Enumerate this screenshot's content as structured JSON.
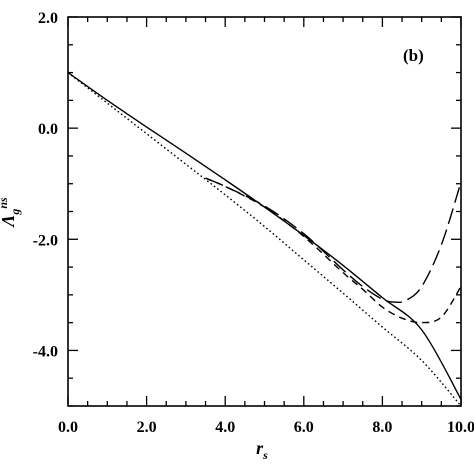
{
  "chart_data": {
    "type": "line",
    "title": "",
    "annotation": "(b)",
    "xlabel": "r",
    "xlabel_sub": "s",
    "ylabel": "Λ",
    "ylabel_sub": "g",
    "ylabel_sup": "ns",
    "xlim": [
      0,
      10
    ],
    "ylim": [
      -5,
      2
    ],
    "x_ticks": [
      0,
      2,
      4,
      6,
      8,
      10
    ],
    "x_tick_labels": [
      "0.0",
      "2.0",
      "4.0",
      "6.0",
      "8.0",
      "10.0"
    ],
    "y_ticks": [
      2,
      0,
      -2,
      -4
    ],
    "y_tick_labels": [
      "2.0",
      "0.0",
      "-2.0",
      "-4.0"
    ],
    "grid": false,
    "series": [
      {
        "style": "solid",
        "x": [
          0,
          1,
          2,
          3,
          4,
          5,
          6,
          7,
          8,
          9,
          10
        ],
        "y": [
          1.0,
          0.5,
          0.02,
          -0.45,
          -0.93,
          -1.42,
          -1.93,
          -2.47,
          -3.05,
          -3.63,
          -4.88
        ]
      },
      {
        "style": "dotted",
        "x": [
          0,
          1,
          2,
          3,
          4,
          5,
          6,
          7,
          8,
          9,
          10
        ],
        "y": [
          1.0,
          0.45,
          -0.1,
          -0.65,
          -1.2,
          -1.77,
          -2.37,
          -2.97,
          -3.58,
          -4.18,
          -5.0
        ]
      },
      {
        "style": "long-dash",
        "x": [
          3.5,
          4.0,
          5.0,
          6.0,
          7.0,
          7.5,
          8.0,
          8.3,
          8.6,
          9.0,
          9.5,
          10.0
        ],
        "y": [
          -0.9,
          -1.05,
          -1.4,
          -1.9,
          -2.55,
          -2.85,
          -3.08,
          -3.13,
          -3.1,
          -2.85,
          -2.1,
          -0.97
        ]
      },
      {
        "style": "short-dash",
        "x": [
          3.5,
          4.0,
          5.0,
          6.0,
          7.0,
          7.5,
          8.0,
          8.5,
          9.0,
          9.5,
          10.0
        ],
        "y": [
          -0.9,
          -1.05,
          -1.42,
          -1.95,
          -2.6,
          -2.9,
          -3.22,
          -3.42,
          -3.5,
          -3.4,
          -2.85
        ]
      }
    ]
  }
}
